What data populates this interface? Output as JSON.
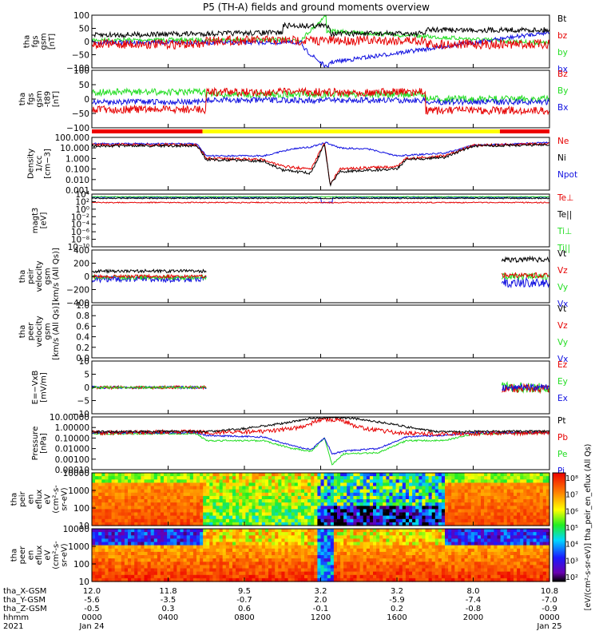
{
  "title": "P5 (TH-A) fields and ground moments overview",
  "colors": {
    "black": "#000000",
    "red": "#e60000",
    "green": "#22dd22",
    "blue": "#1010e0",
    "yellow": "#ffff00",
    "bar_red": "#ee0000"
  },
  "panels": [
    {
      "id": "fgs",
      "ylabel": [
        "tha",
        "fgs",
        "gsm",
        "[nT]"
      ],
      "ticks": [
        "100",
        "50",
        "0",
        "−50",
        "−100"
      ],
      "legend": [
        {
          "t": "Bt",
          "c": "#000000"
        },
        {
          "t": "bz",
          "c": "#e60000"
        },
        {
          "t": "by",
          "c": "#22dd22"
        },
        {
          "t": "bx",
          "c": "#1010e0"
        }
      ]
    },
    {
      "id": "fgs_dev",
      "ylabel": [
        "tha",
        "fgs",
        "gsm",
        "-t89",
        "[nT]"
      ],
      "ticks": [
        "100",
        "50",
        "0",
        "−50",
        "−100"
      ],
      "legend": [
        {
          "t": "Bz",
          "c": "#e60000"
        },
        {
          "t": "By",
          "c": "#22dd22"
        },
        {
          "t": "Bx",
          "c": "#1010e0"
        }
      ]
    },
    {
      "id": "density",
      "ylabel": [
        "Density",
        "1/cc",
        "[cm−3]"
      ],
      "ticks": [
        "100.000",
        "10.000",
        "1.000",
        "0.100",
        "0.010",
        "0.001"
      ],
      "legend": [
        {
          "t": "Ne",
          "c": "#e60000"
        },
        {
          "t": "Ni",
          "c": "#000000"
        },
        {
          "t": "Npot",
          "c": "#1010e0"
        }
      ]
    },
    {
      "id": "temp",
      "ylabel": [
        "magt3",
        "[eV]"
      ],
      "ticks": [
        "10⁴",
        "10²",
        "10⁰",
        "10⁻²",
        "10⁻⁴",
        "10⁻⁶",
        "10⁻⁸",
        "10⁻¹⁰"
      ],
      "legend": [
        {
          "t": "Te⊥",
          "c": "#e60000"
        },
        {
          "t": "Te||",
          "c": "#000000"
        },
        {
          "t": "Ti⊥",
          "c": "#22dd22"
        },
        {
          "t": "Ti||",
          "c": "#22dd22"
        }
      ]
    },
    {
      "id": "peir_vel",
      "ylabel": [
        "tha",
        "peir",
        "velocity",
        "gsm",
        "[km/s (All Qs)]"
      ],
      "ticks": [
        "400",
        "200",
        "0",
        "−200",
        "−400"
      ],
      "legend": [
        {
          "t": "Vt",
          "c": "#000000"
        },
        {
          "t": "Vz",
          "c": "#e60000"
        },
        {
          "t": "Vy",
          "c": "#22dd22"
        },
        {
          "t": "Vx",
          "c": "#1010e0"
        }
      ]
    },
    {
      "id": "peer_vel",
      "ylabel": [
        "tha",
        "peer",
        "velocity",
        "gsm",
        "[km/s (All Qs)]"
      ],
      "ticks": [
        "1.0",
        "0.8",
        "0.6",
        "0.4",
        "0.2",
        "0.0"
      ],
      "legend": [
        {
          "t": "Vt",
          "c": "#000000"
        },
        {
          "t": "Vz",
          "c": "#e60000"
        },
        {
          "t": "Vy",
          "c": "#22dd22"
        },
        {
          "t": "Vx",
          "c": "#1010e0"
        }
      ]
    },
    {
      "id": "efield",
      "ylabel": [
        "E=−VxB",
        "[mV/m]"
      ],
      "ticks": [
        "10",
        "5",
        "0",
        "−5",
        "−10"
      ],
      "legend": [
        {
          "t": "Ez",
          "c": "#e60000"
        },
        {
          "t": "Ey",
          "c": "#22dd22"
        },
        {
          "t": "Ex",
          "c": "#1010e0"
        }
      ]
    },
    {
      "id": "pressure",
      "ylabel": [
        "Pressure",
        "[nPa]"
      ],
      "ticks": [
        "10.00000",
        "1.00000",
        "0.10000",
        "0.01000",
        "0.00100",
        "0.00010"
      ],
      "legend": [
        {
          "t": "Pt",
          "c": "#000000"
        },
        {
          "t": "Pb",
          "c": "#e60000"
        },
        {
          "t": "Pe",
          "c": "#22dd22"
        },
        {
          "t": "Pi",
          "c": "#1010e0"
        }
      ]
    },
    {
      "id": "peir_en",
      "ylabel": [
        "tha",
        "peir",
        "en",
        "eflux",
        "eV",
        "(cm²-s-",
        "sr-eV)"
      ],
      "ticks": [
        "10000",
        "1000",
        "100",
        "10"
      ],
      "legend": []
    },
    {
      "id": "peer_en",
      "ylabel": [
        "tha",
        "peer",
        "en",
        "eflux",
        "eV",
        "(cm²-s-",
        "sr-eV)"
      ],
      "ticks": [
        "10000",
        "1000",
        "100",
        "10"
      ],
      "legend": []
    }
  ],
  "colorbar": {
    "ticks": [
      "10⁸",
      "10⁷",
      "10⁶",
      "10⁵",
      "10⁴",
      "10³",
      "10²"
    ],
    "label": "[eV/(cm²-s-sr-eV)] tha_peir_en_eflux (All Qs)"
  },
  "xaxis": {
    "row_labels": [
      "tha_X-GSM",
      "tha_Y-GSM",
      "tha_Z-GSM",
      "hhmm",
      "2021"
    ],
    "columns": [
      {
        "x": "12.0",
        "y": "-5.6",
        "z": "-0.5",
        "t": "0000",
        "d": "Jan 24"
      },
      {
        "x": "11.8",
        "y": "-3.5",
        "z": "0.3",
        "t": "0400",
        "d": ""
      },
      {
        "x": "9.5",
        "y": "-0.7",
        "z": "0.6",
        "t": "0800",
        "d": ""
      },
      {
        "x": "3.2",
        "y": "2.0",
        "z": "-0.1",
        "t": "1200",
        "d": ""
      },
      {
        "x": "3.2",
        "y": "-5.9",
        "z": "0.2",
        "t": "1600",
        "d": ""
      },
      {
        "x": "8.0",
        "y": "-7.4",
        "z": "-0.8",
        "t": "2000",
        "d": ""
      },
      {
        "x": "10.8",
        "y": "-7.0",
        "z": "-0.9",
        "t": "0000",
        "d": "Jan 25"
      }
    ]
  },
  "chart_data": {
    "type": "line",
    "title": "P5 (TH-A) fields and ground moments overview",
    "x_range_hours": [
      0,
      24
    ],
    "series": [
      {
        "name": "Bt",
        "points": [
          [
            0,
            20
          ],
          [
            2,
            28
          ],
          [
            4,
            32
          ],
          [
            6,
            40
          ],
          [
            8,
            45
          ],
          [
            10,
            60
          ],
          [
            11,
            90
          ],
          [
            12,
            100
          ],
          [
            13,
            60
          ],
          [
            14,
            40
          ],
          [
            15,
            30
          ],
          [
            16,
            20
          ],
          [
            17,
            22
          ],
          [
            18,
            35
          ],
          [
            20,
            30
          ],
          [
            22,
            28
          ],
          [
            24,
            25
          ]
        ]
      },
      {
        "name": "Ne",
        "points": [
          [
            0,
            20
          ],
          [
            4,
            25
          ],
          [
            6,
            1
          ],
          [
            8,
            1
          ],
          [
            9.5,
            0.5
          ],
          [
            11,
            0.3
          ],
          [
            12,
            40
          ],
          [
            12.5,
            0.1
          ],
          [
            13,
            0.05
          ],
          [
            14,
            0.08
          ],
          [
            15,
            0.5
          ],
          [
            17,
            1
          ],
          [
            19,
            20
          ],
          [
            22,
            30
          ],
          [
            24,
            40
          ]
        ]
      },
      {
        "name": "Pt",
        "points": [
          [
            0,
            1
          ],
          [
            4,
            1.2
          ],
          [
            6,
            0.5
          ],
          [
            9,
            0.8
          ],
          [
            11,
            3
          ],
          [
            12,
            10
          ],
          [
            13,
            10
          ],
          [
            14,
            3
          ],
          [
            16,
            2
          ],
          [
            18,
            1.5
          ],
          [
            20,
            1
          ],
          [
            24,
            1
          ]
        ]
      }
    ],
    "notes": "Multi-panel overview; values are approximate readings."
  }
}
